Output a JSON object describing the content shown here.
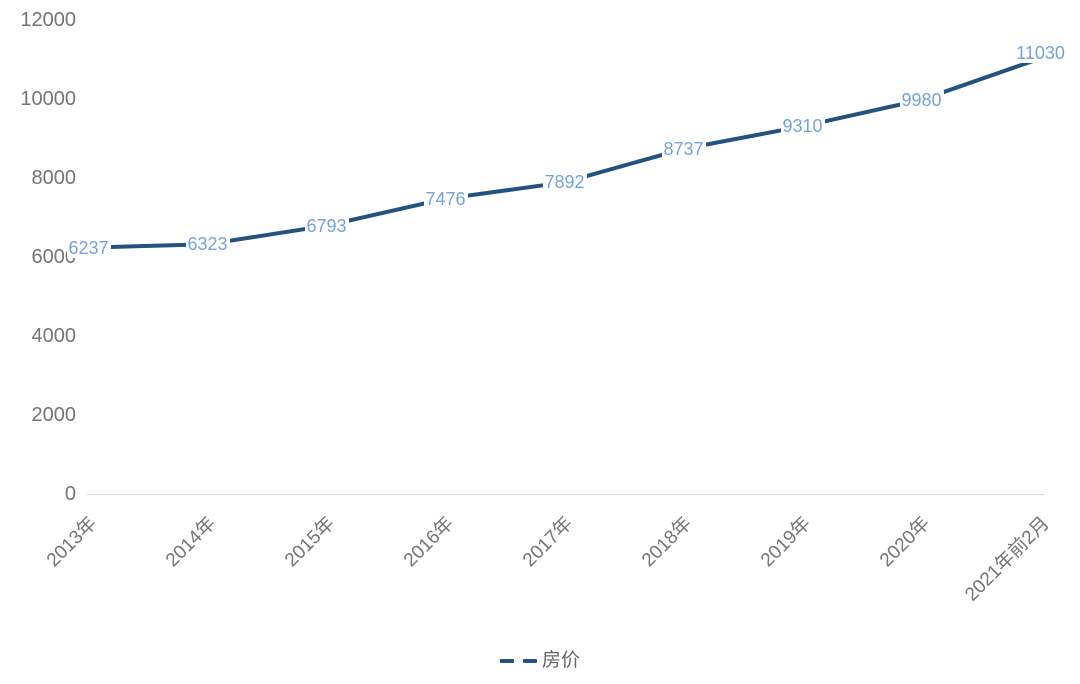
{
  "chart_data": {
    "type": "line",
    "title": "",
    "xlabel": "",
    "ylabel": "",
    "categories": [
      "2013年",
      "2014年",
      "2015年",
      "2016年",
      "2017年",
      "2018年",
      "2019年",
      "2020年",
      "2021年前2月"
    ],
    "series": [
      {
        "name": "房价",
        "values": [
          6237,
          6323,
          6793,
          7476,
          7892,
          8737,
          9310,
          9980,
          11030
        ],
        "line_style": "solid",
        "legend_icon": "dashed-line",
        "color": "#23527e",
        "label_color": "#74a3db"
      }
    ],
    "ylim": [
      0,
      12000
    ],
    "yticks": [
      0,
      2000,
      4000,
      6000,
      8000,
      10000,
      12000
    ],
    "grid": "off",
    "data_labels": "on",
    "legend_position": "bottom",
    "axis_text_color": "#757575",
    "axis_line_color": "#d9d9d9",
    "legend_text_color": "#666666",
    "background_color": "#ffffff"
  }
}
